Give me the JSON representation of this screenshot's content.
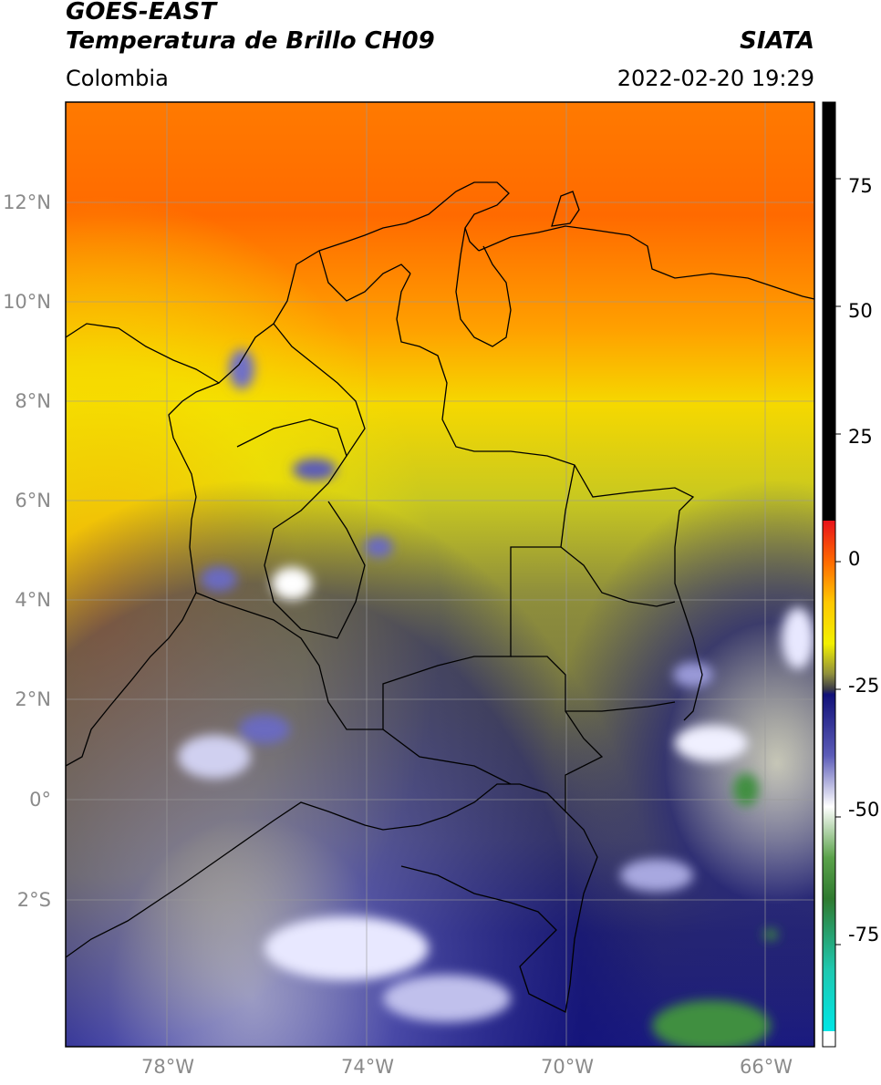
{
  "header": {
    "satellite": "GOES-EAST",
    "product": "Temperatura de Brillo CH09",
    "source": "SIATA",
    "region": "Colombia",
    "datetime": "2022-02-20 19:29"
  },
  "axes": {
    "lat_labels": [
      "12°N",
      "10°N",
      "8°N",
      "6°N",
      "4°N",
      "2°N",
      "0°",
      "2°S"
    ],
    "lon_labels": [
      "78°W",
      "74°W",
      "70°W",
      "66°W"
    ]
  },
  "colorbar": {
    "ticks": [
      "75",
      "50",
      "25",
      "0",
      "-25",
      "-50",
      "-75"
    ],
    "stops": [
      {
        "value": 90,
        "color": "#000000"
      },
      {
        "value": 8,
        "color": "#000000"
      },
      {
        "value": 8,
        "color": "#e8121a"
      },
      {
        "value": 0,
        "color": "#ff6a00"
      },
      {
        "value": -8,
        "color": "#ffc800"
      },
      {
        "value": -16,
        "color": "#f2f000"
      },
      {
        "value": -22,
        "color": "#8f8f3c"
      },
      {
        "value": -25,
        "color": "#3a3a48"
      },
      {
        "value": -26,
        "color": "#101078"
      },
      {
        "value": -38,
        "color": "#5c5cb8"
      },
      {
        "value": -48,
        "color": "#ffffff"
      },
      {
        "value": -58,
        "color": "#5aa24a"
      },
      {
        "value": -66,
        "color": "#2f7a2f"
      },
      {
        "value": -80,
        "color": "#1ec8b0"
      },
      {
        "value": -92,
        "color": "#00e6e6"
      },
      {
        "value": -92,
        "color": "#ffffff"
      },
      {
        "value": -95,
        "color": "#ffffff"
      }
    ]
  }
}
